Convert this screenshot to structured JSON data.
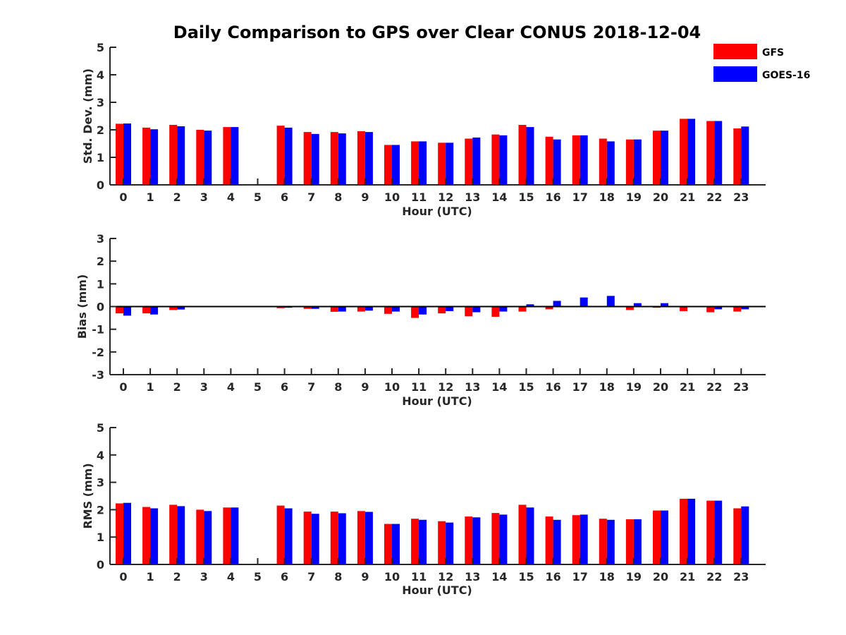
{
  "title": "Daily Comparison to GPS over Clear CONUS 2018-12-04",
  "legend": [
    {
      "label": "GFS",
      "color": "#ff0000"
    },
    {
      "label": "GOES-16",
      "color": "#0000ff"
    }
  ],
  "chart_data": [
    {
      "type": "bar",
      "ylabel": "Std. Dev. (mm)",
      "xlabel": "Hour (UTC)",
      "ylim": [
        0,
        5
      ],
      "yticks": [
        0,
        1,
        2,
        3,
        4,
        5
      ],
      "categories": [
        "0",
        "1",
        "2",
        "3",
        "4",
        "5",
        "6",
        "7",
        "8",
        "9",
        "10",
        "11",
        "12",
        "13",
        "14",
        "15",
        "16",
        "17",
        "18",
        "19",
        "20",
        "21",
        "22",
        "23"
      ],
      "series": [
        {
          "name": "GFS",
          "values": [
            2.22,
            2.08,
            2.18,
            2.0,
            2.1,
            null,
            2.15,
            1.92,
            1.92,
            1.95,
            1.45,
            1.58,
            1.53,
            1.68,
            1.83,
            2.18,
            1.75,
            1.8,
            1.68,
            1.65,
            1.97,
            2.4,
            2.32,
            2.05
          ]
        },
        {
          "name": "GOES-16",
          "values": [
            2.23,
            2.02,
            2.13,
            1.97,
            2.1,
            null,
            2.08,
            1.85,
            1.87,
            1.92,
            1.45,
            1.58,
            1.53,
            1.72,
            1.8,
            2.1,
            1.65,
            1.8,
            1.58,
            1.65,
            1.97,
            2.4,
            2.32,
            2.12
          ]
        }
      ]
    },
    {
      "type": "bar",
      "ylabel": "Bias (mm)",
      "xlabel": "Hour (UTC)",
      "ylim": [
        -3,
        3
      ],
      "yticks": [
        -3,
        -2,
        -1,
        0,
        1,
        2,
        3
      ],
      "categories": [
        "0",
        "1",
        "2",
        "3",
        "4",
        "5",
        "6",
        "7",
        "8",
        "9",
        "10",
        "11",
        "12",
        "13",
        "14",
        "15",
        "16",
        "17",
        "18",
        "19",
        "20",
        "21",
        "22",
        "23"
      ],
      "series": [
        {
          "name": "GFS",
          "values": [
            -0.3,
            -0.3,
            -0.15,
            null,
            null,
            null,
            -0.07,
            -0.1,
            -0.23,
            -0.22,
            -0.32,
            -0.5,
            -0.3,
            -0.43,
            -0.45,
            -0.22,
            -0.12,
            0.0,
            0.02,
            -0.15,
            -0.05,
            -0.2,
            -0.25,
            -0.22
          ]
        },
        {
          "name": "GOES-16",
          "values": [
            -0.4,
            -0.35,
            -0.13,
            null,
            null,
            null,
            -0.05,
            -0.1,
            -0.22,
            -0.18,
            -0.22,
            -0.35,
            -0.2,
            -0.25,
            -0.22,
            0.1,
            0.25,
            0.4,
            0.47,
            0.15,
            0.15,
            0.0,
            -0.12,
            -0.12
          ]
        }
      ]
    },
    {
      "type": "bar",
      "ylabel": "RMS (mm)",
      "xlabel": "Hour (UTC)",
      "ylim": [
        0,
        5
      ],
      "yticks": [
        0,
        1,
        2,
        3,
        4,
        5
      ],
      "categories": [
        "0",
        "1",
        "2",
        "3",
        "4",
        "5",
        "6",
        "7",
        "8",
        "9",
        "10",
        "11",
        "12",
        "13",
        "14",
        "15",
        "16",
        "17",
        "18",
        "19",
        "20",
        "21",
        "22",
        "23"
      ],
      "series": [
        {
          "name": "GFS",
          "values": [
            2.23,
            2.1,
            2.18,
            2.0,
            2.08,
            null,
            2.15,
            1.93,
            1.93,
            1.95,
            1.48,
            1.67,
            1.58,
            1.75,
            1.88,
            2.18,
            1.75,
            1.8,
            1.67,
            1.65,
            1.97,
            2.4,
            2.33,
            2.05
          ]
        },
        {
          "name": "GOES-16",
          "values": [
            2.25,
            2.05,
            2.13,
            1.95,
            2.08,
            null,
            2.05,
            1.85,
            1.87,
            1.92,
            1.48,
            1.63,
            1.53,
            1.72,
            1.82,
            2.08,
            1.63,
            1.82,
            1.63,
            1.65,
            1.97,
            2.4,
            2.33,
            2.12
          ]
        }
      ]
    }
  ]
}
